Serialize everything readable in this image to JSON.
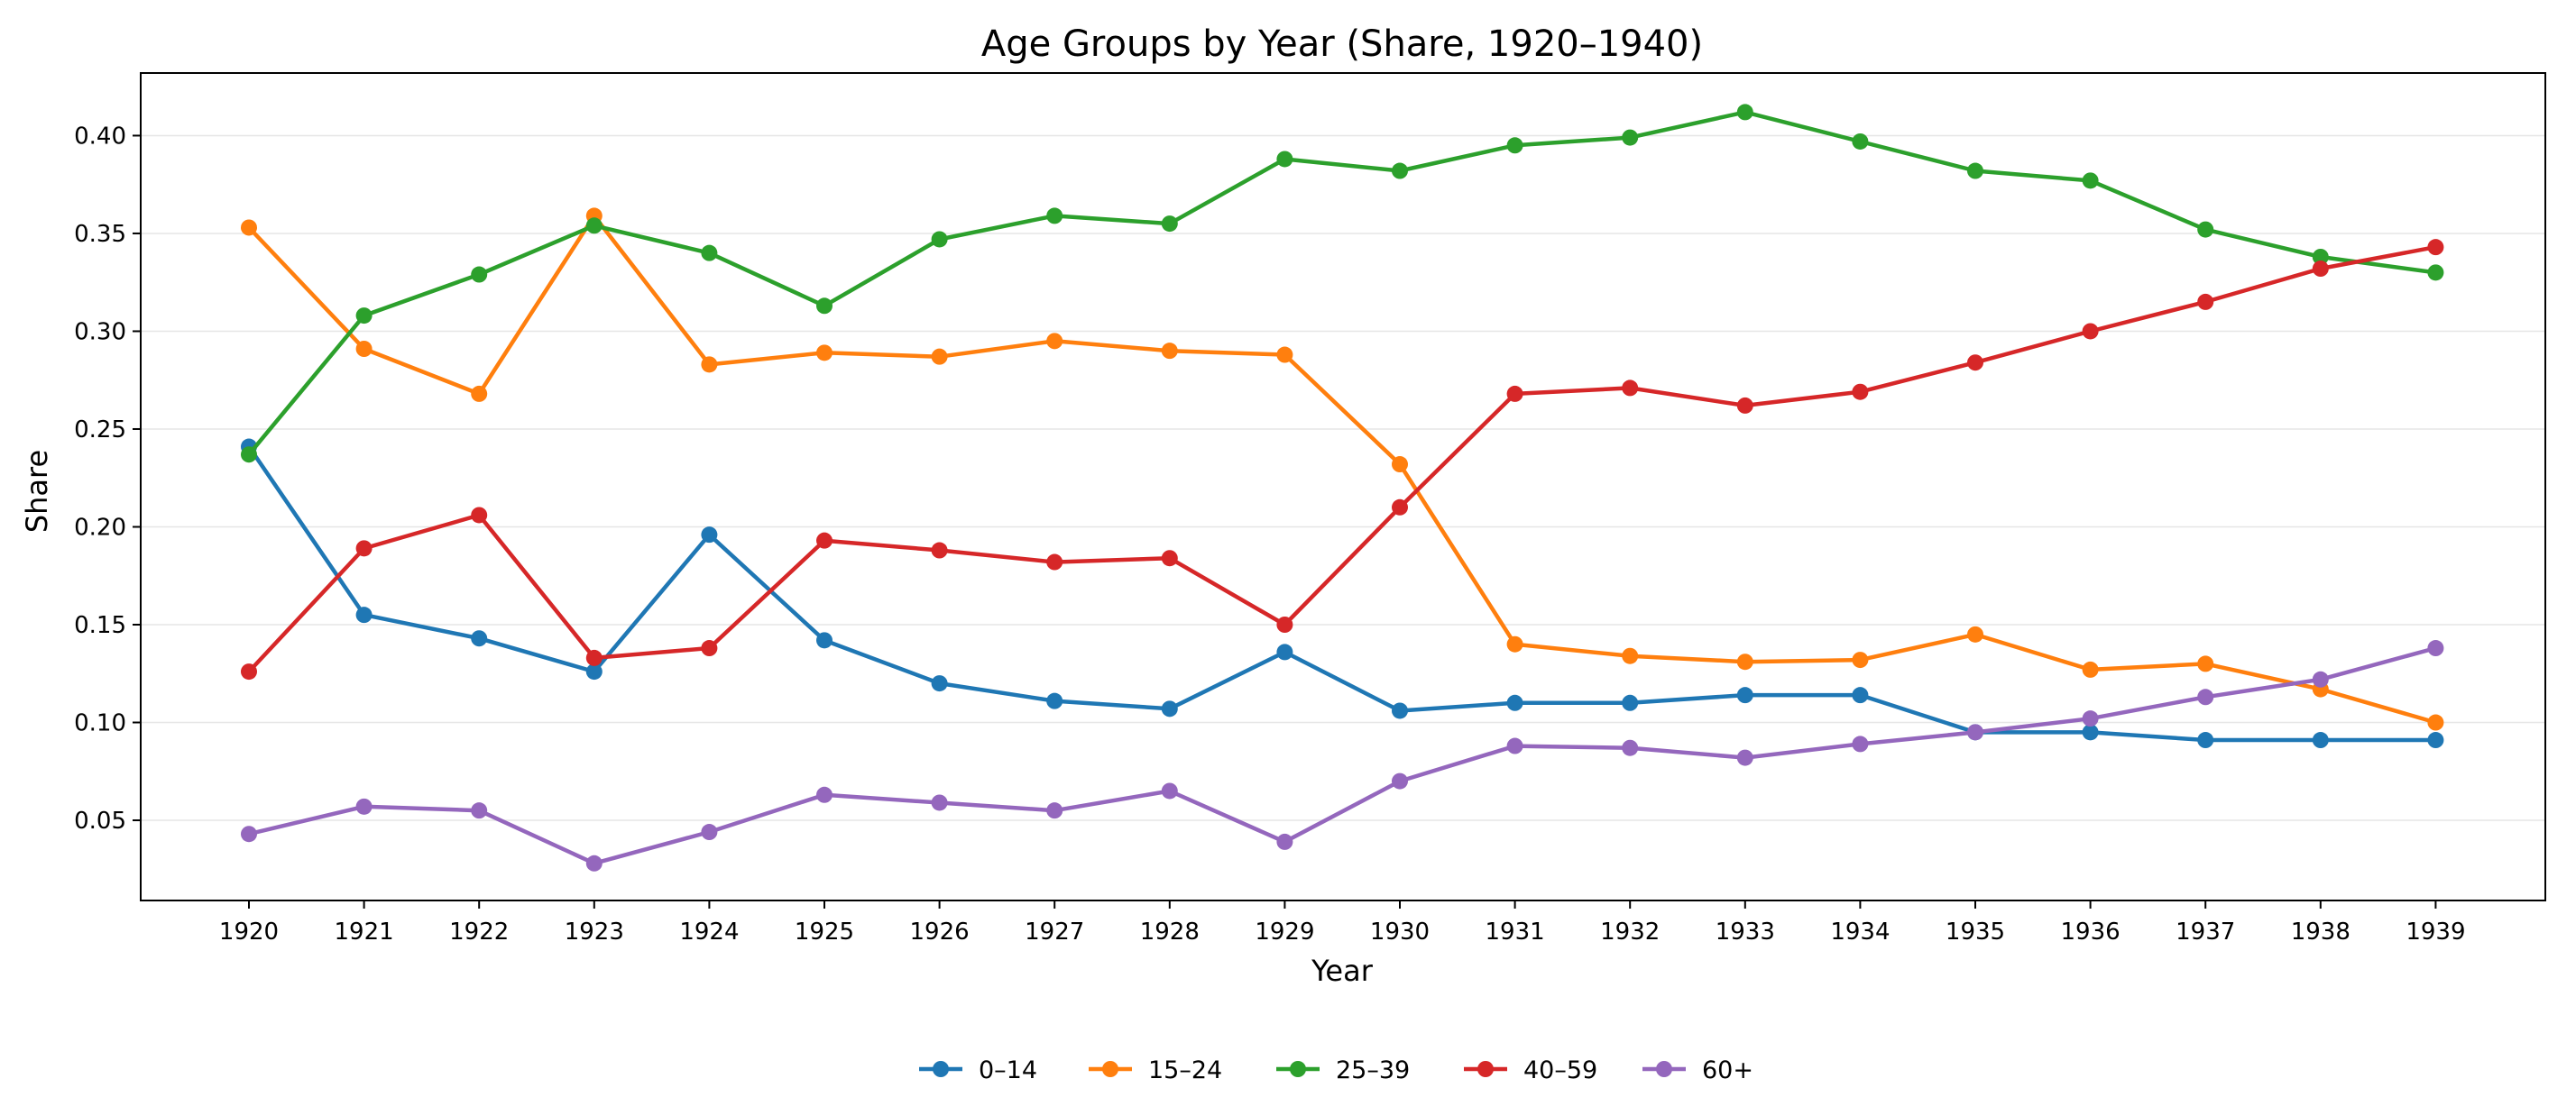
{
  "chart_data": {
    "type": "line",
    "title": "Age Groups by Year (Share, 1920–1940)",
    "xlabel": "Year",
    "ylabel": "Share",
    "categories": [
      "1920",
      "1921",
      "1922",
      "1923",
      "1924",
      "1925",
      "1926",
      "1927",
      "1928",
      "1929",
      "1930",
      "1931",
      "1932",
      "1933",
      "1934",
      "1935",
      "1936",
      "1937",
      "1938",
      "1939"
    ],
    "ylim": [
      0.009,
      0.432
    ],
    "yticks": [
      0.05,
      0.1,
      0.15,
      0.2,
      0.25,
      0.3,
      0.35,
      0.4
    ],
    "ytick_labels": [
      "0.05",
      "0.10",
      "0.15",
      "0.20",
      "0.25",
      "0.30",
      "0.35",
      "0.40"
    ],
    "grid": "horizontal",
    "legend_position": "bottom-center",
    "series": [
      {
        "name": "0–14",
        "color": "#1f77b4",
        "values": [
          0.241,
          0.155,
          0.143,
          0.126,
          0.196,
          0.142,
          0.12,
          0.111,
          0.107,
          0.136,
          0.106,
          0.11,
          0.11,
          0.114,
          0.114,
          0.095,
          0.095,
          0.091,
          0.091,
          0.091
        ]
      },
      {
        "name": "15–24",
        "color": "#ff7f0e",
        "values": [
          0.353,
          0.291,
          0.268,
          0.359,
          0.283,
          0.289,
          0.287,
          0.295,
          0.29,
          0.288,
          0.232,
          0.14,
          0.134,
          0.131,
          0.132,
          0.145,
          0.127,
          0.13,
          0.117,
          0.1
        ]
      },
      {
        "name": "25–39",
        "color": "#2ca02c",
        "values": [
          0.237,
          0.308,
          0.329,
          0.354,
          0.34,
          0.313,
          0.347,
          0.359,
          0.355,
          0.388,
          0.382,
          0.395,
          0.399,
          0.412,
          0.397,
          0.382,
          0.377,
          0.352,
          0.338,
          0.33
        ]
      },
      {
        "name": "40–59",
        "color": "#d62728",
        "values": [
          0.126,
          0.189,
          0.206,
          0.133,
          0.138,
          0.193,
          0.188,
          0.182,
          0.184,
          0.15,
          0.21,
          0.268,
          0.271,
          0.262,
          0.269,
          0.284,
          0.3,
          0.315,
          0.332,
          0.343
        ]
      },
      {
        "name": "60+",
        "color": "#9467bd",
        "values": [
          0.043,
          0.057,
          0.055,
          0.028,
          0.044,
          0.063,
          0.059,
          0.055,
          0.065,
          0.039,
          0.07,
          0.088,
          0.087,
          0.082,
          0.089,
          0.095,
          0.102,
          0.113,
          0.122,
          0.138
        ]
      }
    ]
  }
}
